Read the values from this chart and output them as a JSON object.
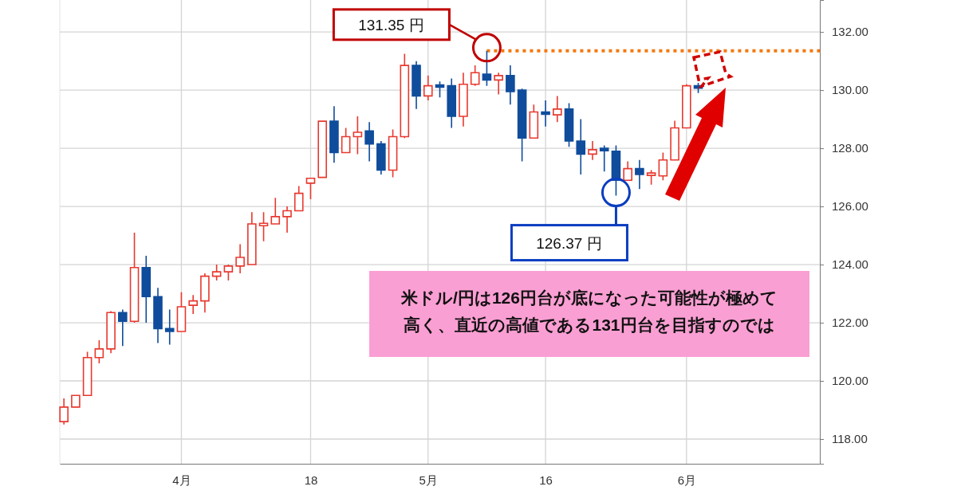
{
  "chart_data": {
    "type": "candlestick",
    "categories": [
      null,
      null,
      null,
      null,
      null,
      null,
      null,
      null,
      null,
      null,
      "4月",
      null,
      null,
      null,
      null,
      null,
      null,
      null,
      null,
      null,
      null,
      "18",
      null,
      null,
      null,
      null,
      null,
      null,
      null,
      null,
      null,
      "5月",
      null,
      null,
      null,
      null,
      null,
      null,
      null,
      null,
      null,
      "16",
      null,
      null,
      null,
      null,
      null,
      null,
      null,
      null,
      null,
      null,
      null,
      "6月",
      null,
      null,
      null,
      null,
      null,
      null,
      null,
      null,
      null,
      null,
      null
    ],
    "ohlc": [
      [
        118.6,
        119.4,
        118.5,
        119.1
      ],
      [
        119.1,
        119.5,
        119.1,
        119.5
      ],
      [
        119.5,
        121.0,
        119.5,
        120.8
      ],
      [
        120.8,
        121.4,
        120.6,
        121.1
      ],
      [
        121.1,
        122.4,
        120.95,
        122.35
      ],
      [
        122.35,
        122.45,
        121.2,
        122.05
      ],
      [
        122.05,
        125.1,
        122.0,
        123.9
      ],
      [
        123.9,
        124.3,
        122.0,
        122.9
      ],
      [
        122.9,
        123.2,
        121.3,
        121.8
      ],
      [
        121.8,
        122.45,
        121.25,
        121.7
      ],
      [
        121.7,
        123.05,
        121.7,
        122.55
      ],
      [
        122.6,
        122.95,
        122.3,
        122.75
      ],
      [
        122.75,
        123.7,
        122.35,
        123.6
      ],
      [
        123.6,
        124.0,
        123.45,
        123.75
      ],
      [
        123.75,
        124.0,
        123.45,
        123.95
      ],
      [
        123.95,
        124.7,
        123.7,
        124.25
      ],
      [
        124.0,
        125.8,
        124.0,
        125.4
      ],
      [
        125.4,
        125.8,
        124.8,
        125.42
      ],
      [
        125.4,
        126.3,
        125.4,
        125.65
      ],
      [
        125.65,
        126.0,
        125.1,
        125.85
      ],
      [
        125.85,
        126.7,
        125.85,
        126.45
      ],
      [
        126.8,
        126.97,
        126.25,
        126.97
      ],
      [
        127.0,
        128.93,
        127.0,
        128.93
      ],
      [
        128.93,
        129.45,
        127.5,
        127.85
      ],
      [
        127.85,
        128.7,
        127.85,
        128.4
      ],
      [
        128.4,
        129.1,
        127.8,
        128.55
      ],
      [
        128.6,
        128.9,
        127.55,
        128.15
      ],
      [
        128.15,
        128.25,
        127.1,
        127.25
      ],
      [
        127.25,
        128.65,
        127.0,
        128.4
      ],
      [
        128.4,
        131.25,
        128.35,
        130.85
      ],
      [
        130.85,
        131.0,
        129.35,
        129.8
      ],
      [
        129.8,
        130.5,
        129.65,
        130.15
      ],
      [
        130.18,
        130.3,
        129.75,
        130.12
      ],
      [
        130.15,
        130.4,
        128.7,
        129.1
      ],
      [
        129.1,
        130.6,
        128.75,
        130.2
      ],
      [
        130.2,
        130.85,
        130.15,
        130.6
      ],
      [
        130.55,
        131.35,
        130.15,
        130.35
      ],
      [
        130.35,
        130.6,
        129.85,
        130.5
      ],
      [
        130.5,
        130.85,
        129.5,
        129.95
      ],
      [
        130.0,
        130.05,
        127.55,
        128.35
      ],
      [
        128.35,
        129.5,
        128.35,
        129.25
      ],
      [
        129.25,
        129.65,
        128.75,
        129.2
      ],
      [
        129.15,
        129.8,
        128.9,
        129.35
      ],
      [
        129.35,
        129.55,
        128.05,
        128.25
      ],
      [
        128.25,
        129.0,
        127.1,
        127.8
      ],
      [
        127.8,
        128.25,
        127.6,
        127.95
      ],
      [
        128.0,
        128.1,
        127.2,
        127.95
      ],
      [
        127.9,
        128.1,
        126.37,
        126.9
      ],
      [
        126.9,
        127.55,
        126.9,
        127.3
      ],
      [
        127.3,
        127.6,
        126.6,
        127.1
      ],
      [
        127.1,
        127.25,
        126.75,
        127.15
      ],
      [
        127.05,
        127.85,
        126.9,
        127.6
      ],
      [
        127.6,
        128.95,
        127.6,
        128.7
      ],
      [
        128.7,
        130.2,
        128.7,
        130.15
      ],
      [
        130.15,
        130.25,
        129.9,
        130.1
      ],
      null,
      null,
      null,
      null,
      null,
      null,
      null,
      null,
      null,
      null
    ],
    "colors": [
      "#e8392f",
      "#e8392f",
      "#e8392f",
      "#e8392f",
      "#e8392f",
      "#0f4c9c",
      "#e8392f",
      "#0f4c9c",
      "#0f4c9c",
      "#0f4c9c",
      "#e8392f",
      "#e8392f",
      "#e8392f",
      "#e8392f",
      "#e8392f",
      "#e8392f",
      "#e8392f",
      "#e8392f",
      "#e8392f",
      "#e8392f",
      "#e8392f",
      "#e8392f",
      "#e8392f",
      "#0f4c9c",
      "#e8392f",
      "#e8392f",
      "#0f4c9c",
      "#0f4c9c",
      "#e8392f",
      "#e8392f",
      "#0f4c9c",
      "#e8392f",
      "#0f4c9c",
      "#0f4c9c",
      "#e8392f",
      "#e8392f",
      "#0f4c9c",
      "#e8392f",
      "#0f4c9c",
      "#0f4c9c",
      "#e8392f",
      "#0f4c9c",
      "#e8392f",
      "#0f4c9c",
      "#0f4c9c",
      "#e8392f",
      "#0f4c9c",
      "#0f4c9c",
      "#e8392f",
      "#0f4c9c",
      "#e8392f",
      "#e8392f",
      "#e8392f",
      "#e8392f",
      "#0f4c9c",
      null,
      null,
      null,
      null,
      null,
      null,
      null,
      null,
      null,
      null
    ],
    "ylim": [
      117.15,
      133.1
    ],
    "yticks": [
      {
        "value": 118,
        "label": "118.00"
      },
      {
        "value": 120,
        "label": "120.00"
      },
      {
        "value": 122,
        "label": "122.00"
      },
      {
        "value": 124,
        "label": "124.00"
      },
      {
        "value": 126,
        "label": "126.00"
      },
      {
        "value": 128,
        "label": "128.00"
      },
      {
        "value": 130,
        "label": "130.00"
      },
      {
        "value": 132,
        "label": "132.00"
      }
    ],
    "grid": true,
    "ref_lines": [
      {
        "axis": "y",
        "value": 131.35,
        "color": "#f5780f",
        "line_style": "dotted"
      }
    ],
    "annotations": [
      "131.35 円",
      "126.37 円",
      "米ドル/円は126円台が底になった可能性が極めて高く、直近の高値である131円台を目指すのでは"
    ]
  }
}
